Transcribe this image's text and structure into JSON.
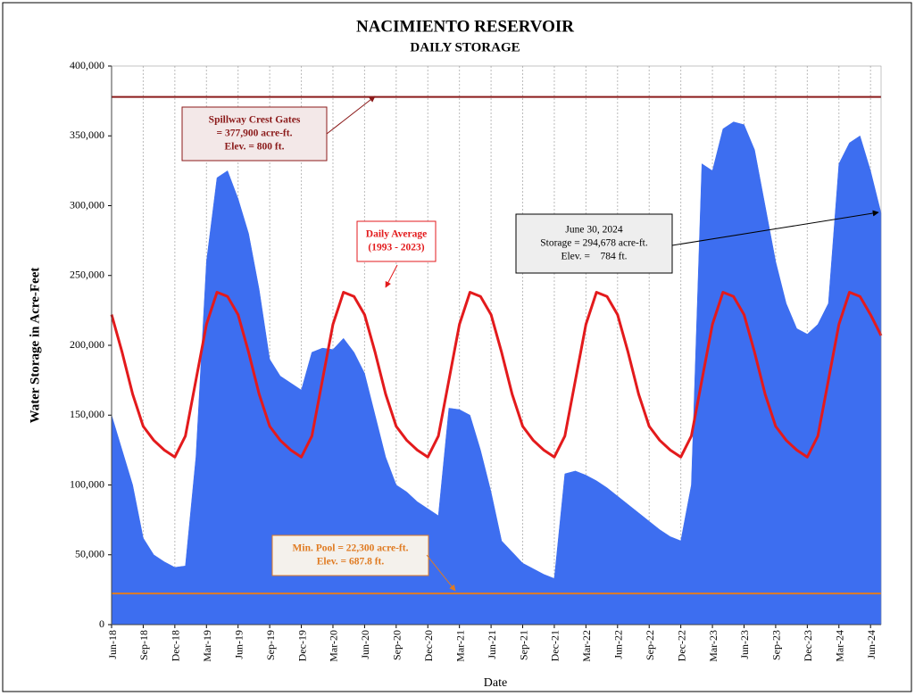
{
  "chart_data": {
    "type": "area",
    "title": "NACIMIENTO RESERVOIR",
    "subtitle": "DAILY STORAGE",
    "x_label": "Date",
    "y_label": "Water Storage in Acre-Feet",
    "x": [
      "2018-06",
      "2018-07",
      "2018-08",
      "2018-09",
      "2018-10",
      "2018-11",
      "2018-12",
      "2019-01",
      "2019-02",
      "2019-03",
      "2019-04",
      "2019-05",
      "2019-06",
      "2019-07",
      "2019-08",
      "2019-09",
      "2019-10",
      "2019-11",
      "2019-12",
      "2020-01",
      "2020-02",
      "2020-03",
      "2020-04",
      "2020-05",
      "2020-06",
      "2020-07",
      "2020-08",
      "2020-09",
      "2020-10",
      "2020-11",
      "2020-12",
      "2021-01",
      "2021-02",
      "2021-03",
      "2021-04",
      "2021-05",
      "2021-06",
      "2021-07",
      "2021-08",
      "2021-09",
      "2021-10",
      "2021-11",
      "2021-12",
      "2022-01",
      "2022-02",
      "2022-03",
      "2022-04",
      "2022-05",
      "2022-06",
      "2022-07",
      "2022-08",
      "2022-09",
      "2022-10",
      "2022-11",
      "2022-12",
      "2023-01",
      "2023-02",
      "2023-03",
      "2023-04",
      "2023-05",
      "2023-06",
      "2023-07",
      "2023-08",
      "2023-09",
      "2023-10",
      "2023-11",
      "2023-12",
      "2024-01",
      "2024-02",
      "2024-03",
      "2024-04",
      "2024-05",
      "2024-06",
      "2024-07"
    ],
    "series": [
      {
        "kind": "area",
        "color": "#3d6ef0",
        "values": [
          150000,
          125000,
          100000,
          62000,
          50000,
          45000,
          41000,
          42000,
          120000,
          260000,
          320000,
          325000,
          305000,
          280000,
          240000,
          190000,
          178000,
          173000,
          168000,
          195000,
          198000,
          197000,
          205000,
          195000,
          180000,
          150000,
          120000,
          100000,
          95000,
          88000,
          83000,
          78000,
          155000,
          154000,
          150000,
          125000,
          95000,
          60000,
          52000,
          44000,
          40000,
          36000,
          33000,
          108000,
          110000,
          107000,
          103000,
          98000,
          92000,
          86000,
          80000,
          74000,
          68000,
          63000,
          60000,
          100000,
          330000,
          325000,
          355000,
          360000,
          358000,
          340000,
          300000,
          260000,
          230000,
          212000,
          208000,
          215000,
          230000,
          330000,
          345000,
          350000,
          325000,
          294678
        ]
      },
      {
        "kind": "line",
        "color": "#e31a1c",
        "values": [
          222000,
          195000,
          165000,
          142000,
          132000,
          125000,
          120000,
          135000,
          175000,
          215000,
          238000,
          235000,
          222000,
          195000,
          165000,
          142000,
          132000,
          125000,
          120000,
          135000,
          175000,
          215000,
          238000,
          235000,
          222000,
          195000,
          165000,
          142000,
          132000,
          125000,
          120000,
          135000,
          175000,
          215000,
          238000,
          235000,
          222000,
          195000,
          165000,
          142000,
          132000,
          125000,
          120000,
          135000,
          175000,
          215000,
          238000,
          235000,
          222000,
          195000,
          165000,
          142000,
          132000,
          125000,
          120000,
          135000,
          175000,
          215000,
          238000,
          235000,
          222000,
          195000,
          165000,
          142000,
          132000,
          125000,
          120000,
          135000,
          175000,
          215000,
          238000,
          235000,
          222000,
          207000
        ]
      }
    ],
    "reference_lines": [
      {
        "value": 377900,
        "color": "#8b1a1a"
      },
      {
        "value": 22300,
        "color": "#e07b22"
      }
    ],
    "annotations": [
      {
        "lines": [
          "Spillway Crest Gates",
          "= 377,900 acre-ft.",
          "Elev. = 800 ft."
        ],
        "color": "#8b1a1a"
      },
      {
        "lines": [
          "Daily Average",
          "(1993 - 2023)"
        ],
        "color": "#e31a1c"
      },
      {
        "lines": [
          "June 30, 2024",
          "Storage = 294,678 acre-ft.",
          "Elev. =    784 ft."
        ],
        "color": "#000000"
      },
      {
        "lines": [
          "Min. Pool = 22,300 acre-ft.",
          "Elev. = 687.8 ft."
        ],
        "color": "#e07b22"
      }
    ],
    "xlim": [
      "2018-06",
      "2024-07"
    ],
    "xticks": [
      {
        "value": "2018-06",
        "label": "Jun-18"
      },
      {
        "value": "2018-09",
        "label": "Sep-18"
      },
      {
        "value": "2018-12",
        "label": "Dec-18"
      },
      {
        "value": "2019-03",
        "label": "Mar-19"
      },
      {
        "value": "2019-06",
        "label": "Jun-19"
      },
      {
        "value": "2019-09",
        "label": "Sep-19"
      },
      {
        "value": "2019-12",
        "label": "Dec-19"
      },
      {
        "value": "2020-03",
        "label": "Mar-20"
      },
      {
        "value": "2020-06",
        "label": "Jun-20"
      },
      {
        "value": "2020-09",
        "label": "Sep-20"
      },
      {
        "value": "2020-12",
        "label": "Dec-20"
      },
      {
        "value": "2021-03",
        "label": "Mar-21"
      },
      {
        "value": "2021-06",
        "label": "Jun-21"
      },
      {
        "value": "2021-09",
        "label": "Sep-21"
      },
      {
        "value": "2021-12",
        "label": "Dec-21"
      },
      {
        "value": "2022-03",
        "label": "Mar-22"
      },
      {
        "value": "2022-06",
        "label": "Jun-22"
      },
      {
        "value": "2022-09",
        "label": "Sep-22"
      },
      {
        "value": "2022-12",
        "label": "Dec-22"
      },
      {
        "value": "2023-03",
        "label": "Mar-23"
      },
      {
        "value": "2023-06",
        "label": "Jun-23"
      },
      {
        "value": "2023-09",
        "label": "Sep-23"
      },
      {
        "value": "2023-12",
        "label": "Dec-23"
      },
      {
        "value": "2024-03",
        "label": "Mar-24"
      },
      {
        "value": "2024-06",
        "label": "Jun-24"
      }
    ],
    "ylim": [
      0,
      400000
    ],
    "yticks": [
      0,
      {
        "value": 50000,
        "label": "50,000"
      },
      {
        "value": 100000,
        "label": "100,000"
      },
      {
        "value": 150000,
        "label": "150,000"
      },
      {
        "value": 200000,
        "label": "200,000"
      },
      {
        "value": 250000,
        "label": "250,000"
      },
      {
        "value": 300000,
        "label": "300,000"
      },
      {
        "value": 350000,
        "label": "350,000"
      },
      {
        "value": 400000,
        "label": "400,000"
      }
    ],
    "grid": true
  }
}
